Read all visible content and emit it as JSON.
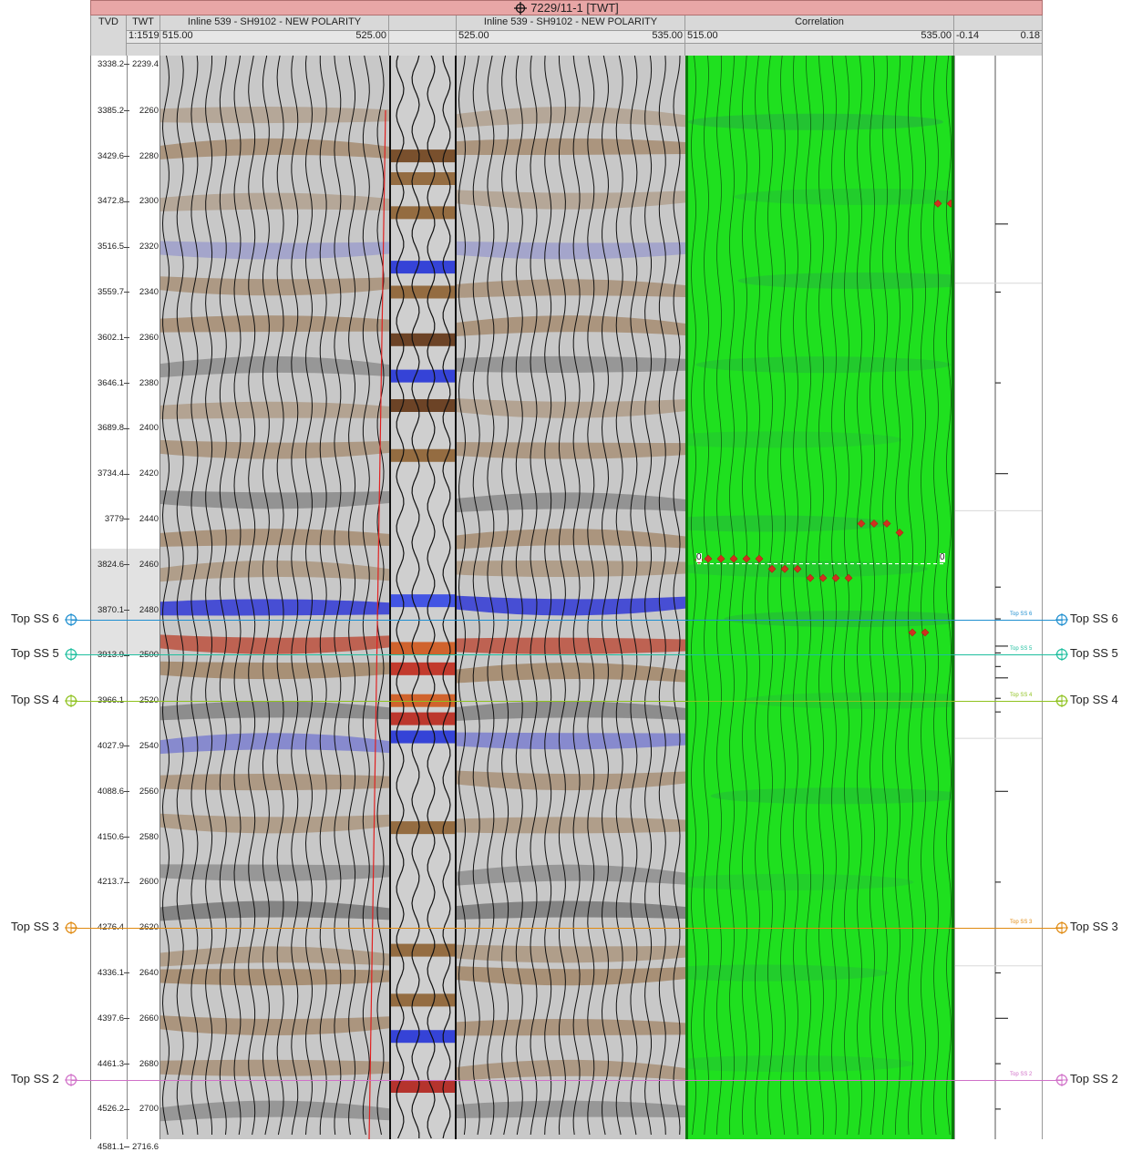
{
  "window": {
    "title": "7229/11-1 [TWT]"
  },
  "headers": {
    "tvd": "TVD",
    "twt": "TWT",
    "scale": "1:1519",
    "track1": {
      "name": "Inline 539 - SH9102 - NEW POLARITY",
      "min": "515.00",
      "max": "525.00"
    },
    "track2": {
      "name": "Inline 539 - SH9102 - NEW POLARITY",
      "min": "525.00",
      "max": "535.00"
    },
    "track3": {
      "name": "Correlation",
      "min": "515.00",
      "max": "535.00"
    },
    "track4": {
      "min": "-0.14",
      "max": "0.18"
    }
  },
  "depth_ticks": [
    {
      "tvd": "3338.2",
      "twt": "2239.4"
    },
    {
      "tvd": "3385.2",
      "twt": "2260"
    },
    {
      "tvd": "3429.6",
      "twt": "2280"
    },
    {
      "tvd": "3472.8",
      "twt": "2300"
    },
    {
      "tvd": "3516.5",
      "twt": "2320"
    },
    {
      "tvd": "3559.7",
      "twt": "2340"
    },
    {
      "tvd": "3602.1",
      "twt": "2360"
    },
    {
      "tvd": "3646.1",
      "twt": "2380"
    },
    {
      "tvd": "3689.8",
      "twt": "2400"
    },
    {
      "tvd": "3734.4",
      "twt": "2420"
    },
    {
      "tvd": "3779",
      "twt": "2440"
    },
    {
      "tvd": "3824.6",
      "twt": "2460"
    },
    {
      "tvd": "3870.1",
      "twt": "2480"
    },
    {
      "tvd": "3913.9",
      "twt": "2500"
    },
    {
      "tvd": "3966.1",
      "twt": "2520"
    },
    {
      "tvd": "4027.9",
      "twt": "2540"
    },
    {
      "tvd": "4088.6",
      "twt": "2560"
    },
    {
      "tvd": "4150.6",
      "twt": "2580"
    },
    {
      "tvd": "4213.7",
      "twt": "2600"
    },
    {
      "tvd": "4276.4",
      "twt": "2620"
    },
    {
      "tvd": "4336.1",
      "twt": "2640"
    },
    {
      "tvd": "4397.6",
      "twt": "2660"
    },
    {
      "tvd": "4461.3",
      "twt": "2680"
    },
    {
      "tvd": "4526.2",
      "twt": "2700"
    },
    {
      "tvd": "4581.1",
      "twt": "2716.6"
    }
  ],
  "markers": [
    {
      "name": "Top SS 6",
      "small": "Top SS 6",
      "color": "#1f8fd0",
      "twt": 2484.5
    },
    {
      "name": "Top SS 5",
      "small": "Top SS 5",
      "color": "#1fbf9f",
      "twt": 2499.5
    },
    {
      "name": "Top SS 4",
      "small": "Top SS 4",
      "color": "#8fc21f",
      "twt": 2520
    },
    {
      "name": "Top SS 3",
      "small": "Top SS 3",
      "color": "#e08a10",
      "twt": 2620
    },
    {
      "name": "Top SS 2",
      "small": "Top SS 2",
      "color": "#d070c8",
      "twt": 2687
    }
  ],
  "correlation": {
    "zero_left": "0",
    "zero_right": "0"
  },
  "colors": {
    "seismic_pos": "#8a5a28",
    "seismic_neg": "#2030d0",
    "correlation_bg": "#1fe01f",
    "well_line": "#e02020"
  }
}
